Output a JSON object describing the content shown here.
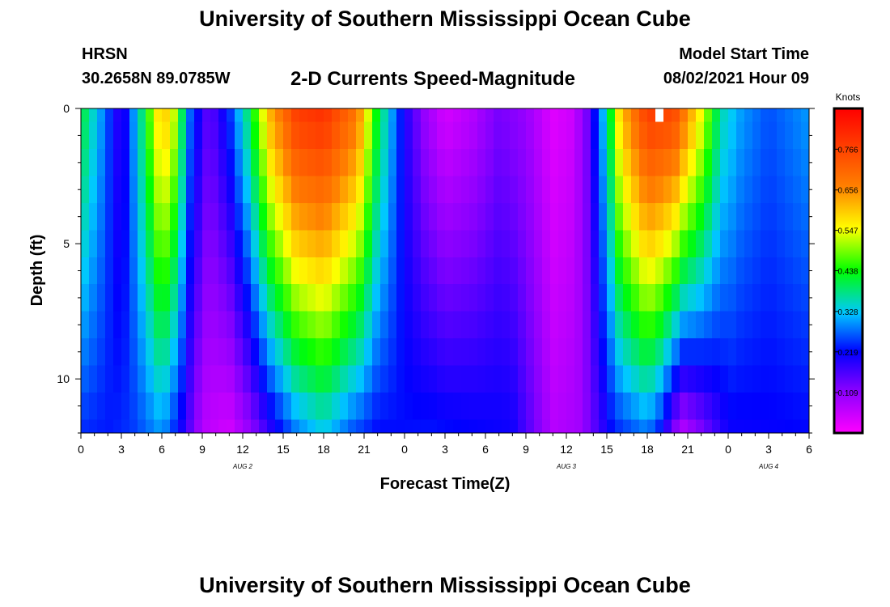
{
  "header": {
    "title": "University of Southern Mississippi Ocean Cube",
    "station": "HRSN",
    "coords": "30.2658N  89.0785W",
    "subtitle": "2-D Currents Speed-Magnitude",
    "model_label": "Model Start Time",
    "model_value": "08/02/2021 Hour 09"
  },
  "footer": {
    "title": "University of Southern Mississippi Ocean Cube"
  },
  "chart_data": {
    "type": "heatmap",
    "title": "2-D Currents Speed-Magnitude",
    "xlabel": "Forecast Time(Z)",
    "ylabel": "Depth (ft)",
    "xlim": [
      0,
      54
    ],
    "ylim": [
      12,
      0
    ],
    "x_ticks": [
      {
        "x": 0,
        "label": "0"
      },
      {
        "x": 3,
        "label": "3"
      },
      {
        "x": 6,
        "label": "6"
      },
      {
        "x": 9,
        "label": "9"
      },
      {
        "x": 12,
        "label": "12"
      },
      {
        "x": 15,
        "label": "15"
      },
      {
        "x": 18,
        "label": "18"
      },
      {
        "x": 21,
        "label": "21"
      },
      {
        "x": 24,
        "label": "0"
      },
      {
        "x": 27,
        "label": "3"
      },
      {
        "x": 30,
        "label": "6"
      },
      {
        "x": 33,
        "label": "9"
      },
      {
        "x": 36,
        "label": "12"
      },
      {
        "x": 39,
        "label": "15"
      },
      {
        "x": 42,
        "label": "18"
      },
      {
        "x": 45,
        "label": "21"
      },
      {
        "x": 48,
        "label": "0"
      },
      {
        "x": 51,
        "label": "3"
      },
      {
        "x": 54,
        "label": "6"
      }
    ],
    "date_labels": [
      {
        "x": 12,
        "label": "AUG 2"
      },
      {
        "x": 36,
        "label": "AUG 3"
      },
      {
        "x": 51,
        "label": "AUG 4"
      }
    ],
    "y_ticks": [
      {
        "y": 0,
        "label": "0"
      },
      {
        "y": 5,
        "label": "5"
      },
      {
        "y": 10,
        "label": "10"
      }
    ],
    "colorbar": {
      "label": "Knots",
      "range": [
        0,
        0.876
      ],
      "ticks": [
        "0.766",
        "0.656",
        "0.547",
        "0.438",
        "0.328",
        "0.219",
        "0.109"
      ],
      "tick_values": [
        0.766,
        0.656,
        0.547,
        0.438,
        0.328,
        0.219,
        0.109
      ]
    },
    "field": {
      "description": "Current speed (knots) over forecast hour (0-54) and depth (0-12 ft)",
      "surface_keyframes": [
        [
          0,
          0.42
        ],
        [
          1.5,
          0.3
        ],
        [
          3,
          0.17
        ],
        [
          4.5,
          0.38
        ],
        [
          6,
          0.62
        ],
        [
          7,
          0.52
        ],
        [
          8,
          0.28
        ],
        [
          9.5,
          0.14
        ],
        [
          11,
          0.24
        ],
        [
          12.5,
          0.4
        ],
        [
          14,
          0.62
        ],
        [
          16,
          0.78
        ],
        [
          18,
          0.8
        ],
        [
          20.5,
          0.68
        ],
        [
          22,
          0.42
        ],
        [
          24,
          0.2
        ],
        [
          25.5,
          0.1
        ],
        [
          27,
          0.04
        ],
        [
          29,
          0.07
        ],
        [
          31,
          0.13
        ],
        [
          33,
          0.1
        ],
        [
          35,
          0.03
        ],
        [
          36.5,
          0.05
        ],
        [
          37.5,
          0.13
        ],
        [
          39,
          0.36
        ],
        [
          40,
          0.6
        ],
        [
          42,
          0.78
        ],
        [
          44,
          0.76
        ],
        [
          46,
          0.55
        ],
        [
          47.5,
          0.36
        ],
        [
          49,
          0.3
        ],
        [
          51,
          0.26
        ],
        [
          54,
          0.3
        ]
      ],
      "bottom_keyframes": [
        [
          0,
          0.24
        ],
        [
          2,
          0.23
        ],
        [
          4,
          0.25
        ],
        [
          6,
          0.3
        ],
        [
          7.5,
          0.2
        ],
        [
          9,
          0.07
        ],
        [
          11,
          0.04
        ],
        [
          12.5,
          0.1
        ],
        [
          14,
          0.18
        ],
        [
          16,
          0.28
        ],
        [
          18,
          0.33
        ],
        [
          20,
          0.26
        ],
        [
          22,
          0.22
        ],
        [
          26,
          0.23
        ],
        [
          32,
          0.21
        ],
        [
          35,
          0.07
        ],
        [
          37,
          0.09
        ],
        [
          39.5,
          0.23
        ],
        [
          42,
          0.28
        ],
        [
          43,
          0.22
        ],
        [
          44.5,
          0.06
        ],
        [
          46,
          0.12
        ],
        [
          48,
          0.21
        ],
        [
          54,
          0.22
        ]
      ],
      "missing_cell": {
        "x": 43,
        "depth": 0.5
      }
    }
  }
}
